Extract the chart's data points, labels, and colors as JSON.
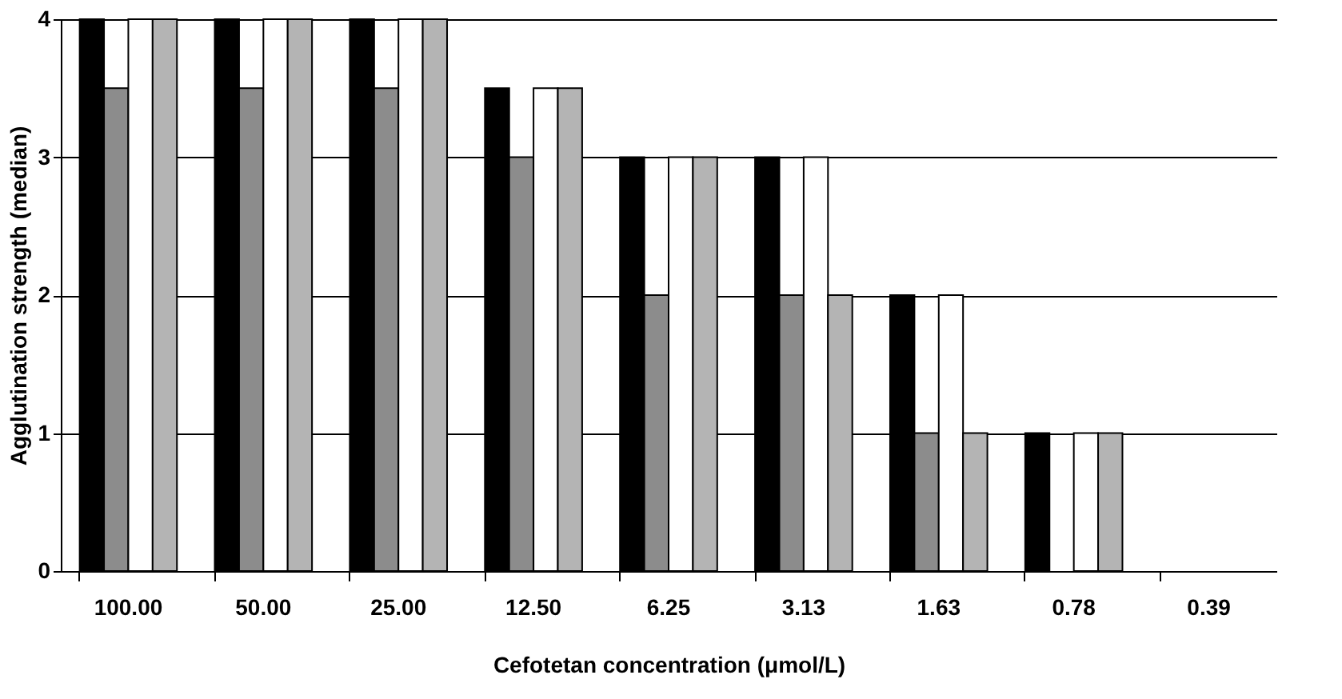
{
  "chart_data": {
    "type": "bar",
    "xlabel": "Cefotetan concentration (μmol/L)",
    "ylabel": "Agglutination strength (median)",
    "categories": [
      "100.00",
      "50.00",
      "25.00",
      "12.50",
      "6.25",
      "3.13",
      "1.63",
      "0.78",
      "0.39"
    ],
    "series": [
      {
        "color": "#000000",
        "values": [
          4,
          4,
          4,
          3.5,
          3,
          3,
          2,
          1,
          0
        ]
      },
      {
        "color": "#8c8c8c",
        "values": [
          3.5,
          3.5,
          3.5,
          3,
          2,
          2,
          1,
          0,
          0
        ]
      },
      {
        "color": "#ffffff",
        "values": [
          4,
          4,
          4,
          3.5,
          3,
          3,
          2,
          1,
          0
        ]
      },
      {
        "color": "#b4b4b4",
        "values": [
          4,
          4,
          4,
          3.5,
          3,
          2,
          1,
          1,
          0
        ]
      }
    ],
    "ylim": [
      0,
      4
    ],
    "yticks": [
      0,
      1,
      2,
      3,
      4
    ],
    "grid": "y",
    "legend": false
  }
}
